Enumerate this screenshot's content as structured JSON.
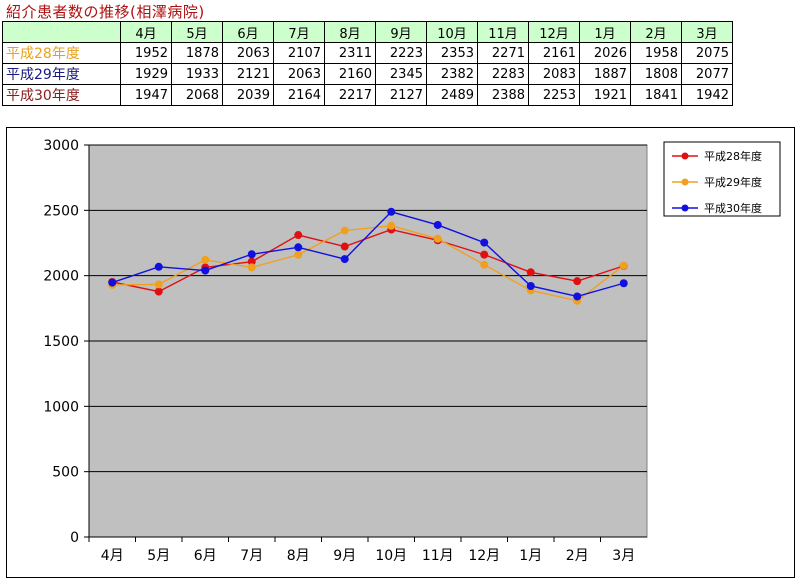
{
  "title": "紹介患者数の推移(相澤病院)",
  "table": {
    "months": [
      "4月",
      "5月",
      "6月",
      "7月",
      "8月",
      "9月",
      "10月",
      "11月",
      "12月",
      "1月",
      "2月",
      "3月"
    ],
    "rows": [
      {
        "label": "平成28年度",
        "color": "#e8a020",
        "values": [
          1952,
          1878,
          2063,
          2107,
          2311,
          2223,
          2353,
          2271,
          2161,
          2026,
          1958,
          2075
        ]
      },
      {
        "label": "平成29年度",
        "color": "#1a1a80",
        "values": [
          1929,
          1933,
          2121,
          2063,
          2160,
          2345,
          2382,
          2283,
          2083,
          1887,
          1808,
          2077
        ]
      },
      {
        "label": "平成30年度",
        "color": "#8b1a1a",
        "values": [
          1947,
          2068,
          2039,
          2164,
          2217,
          2127,
          2489,
          2388,
          2253,
          1921,
          1841,
          1942
        ]
      }
    ]
  },
  "chart_data": {
    "type": "line",
    "categories": [
      "4月",
      "5月",
      "6月",
      "7月",
      "8月",
      "9月",
      "10月",
      "11月",
      "12月",
      "1月",
      "2月",
      "3月"
    ],
    "ylim": [
      0,
      3000
    ],
    "yticks": [
      0,
      500,
      1000,
      1500,
      2000,
      2500,
      3000
    ],
    "plot_background": "#c0c0c0",
    "grid": true,
    "legend_position": "top-right",
    "series": [
      {
        "name": "平成28年度",
        "color": "#e01010",
        "values": [
          1952,
          1878,
          2063,
          2107,
          2311,
          2223,
          2353,
          2271,
          2161,
          2026,
          1958,
          2075
        ]
      },
      {
        "name": "平成29年度",
        "color": "#f0a020",
        "values": [
          1929,
          1933,
          2121,
          2063,
          2160,
          2345,
          2382,
          2283,
          2083,
          1887,
          1808,
          2077
        ]
      },
      {
        "name": "平成30年度",
        "color": "#1010e0",
        "values": [
          1947,
          2068,
          2039,
          2164,
          2217,
          2127,
          2489,
          2388,
          2253,
          1921,
          1841,
          1942
        ]
      }
    ]
  }
}
